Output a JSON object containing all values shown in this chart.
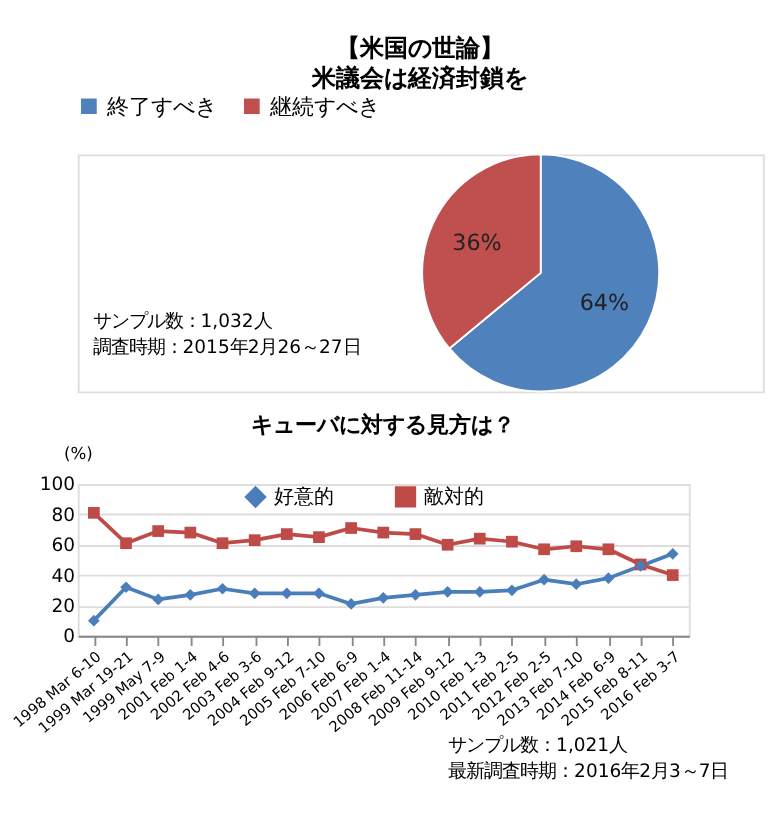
{
  "chart_data": [
    {
      "type": "pie",
      "title": "【米国の世論】",
      "subtitle": "米議会は経済封鎖を",
      "categories": [
        "終了すべき",
        "継続すべき"
      ],
      "values": [
        64,
        36
      ],
      "colors": [
        "#4f81bd",
        "#c0504d"
      ],
      "value_labels": [
        "64%",
        "36%"
      ],
      "legend": "top",
      "annotations": [
        "サンプル数：1,032人",
        "調査時期：2015年2月26～27日"
      ]
    },
    {
      "type": "line",
      "title": "キューバに対する見方は？",
      "ylabel": "(%)",
      "categories": [
        "1998 Mar 6-10",
        "1999 Mar 19-21",
        "1999 May 7-9",
        "2001 Feb 1-4",
        "2002 Feb 4-6",
        "2003 Feb 3-6",
        "2004 Feb 9-12",
        "2005 Feb 7-10",
        "2006 Feb 6-9",
        "2007 Feb 1-4",
        "2008 Feb 11-14",
        "2009 Feb 9-12",
        "2010 Feb 1-3",
        "2011 Feb 2-5",
        "2012 Feb 2-5",
        "2013 Feb 7-10",
        "2014 Feb 6-9",
        "2015 Feb 8-11",
        "2016 Feb 3-7"
      ],
      "series": [
        {
          "name": "好意的",
          "color": "#4a7ebb",
          "marker": "diamond",
          "values": [
            10,
            32,
            24,
            27,
            31,
            28,
            28,
            28,
            21,
            25,
            27,
            29,
            29,
            30,
            37,
            34,
            38,
            46,
            54
          ]
        },
        {
          "name": "敵対的",
          "color": "#be4b48",
          "marker": "square",
          "values": [
            81,
            61,
            69,
            68,
            61,
            63,
            67,
            65,
            71,
            68,
            67,
            60,
            64,
            62,
            57,
            59,
            57,
            47,
            40
          ]
        }
      ],
      "ylim": [
        0,
        100
      ],
      "yticks": [
        0,
        20,
        40,
        60,
        80,
        100
      ],
      "grid": "y",
      "legend": "top",
      "line_style": "solid",
      "annotations": [
        "サンプル数：1,021人",
        "最新調査時期：2016年2月3～7日"
      ]
    }
  ]
}
